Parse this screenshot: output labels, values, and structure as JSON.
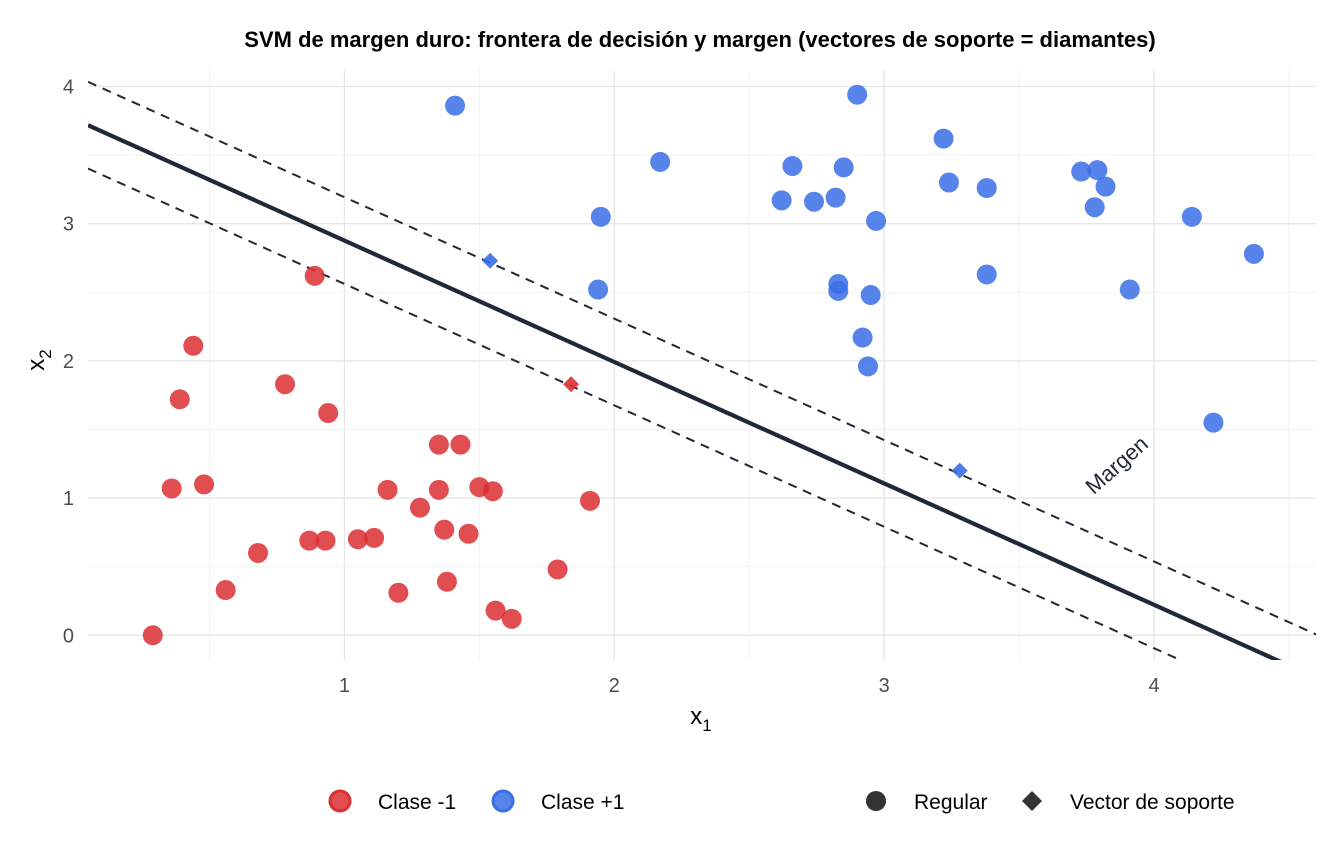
{
  "chart_data": {
    "type": "scatter",
    "title": "SVM de margen duro: frontera de decisión y margen (vectores de soporte = diamantes)",
    "xlabel": "x",
    "xlabel_sub": "1",
    "ylabel": "x",
    "ylabel_sub": "2",
    "xlim": [
      0.05,
      4.6
    ],
    "ylim": [
      -0.18,
      4.12
    ],
    "x_ticks": [
      1,
      2,
      3,
      4
    ],
    "y_ticks": [
      0,
      1,
      2,
      3,
      4
    ],
    "grid": true,
    "legend_position": "bottom",
    "colors": {
      "neg": "#DC2F34",
      "pos": "#3A6FE6",
      "line": "#1F2937",
      "shape": "#333333"
    },
    "boundary": {
      "slope": -0.885,
      "intercept": 3.762,
      "margin_offset": 0.316
    },
    "annotation": {
      "text": "Margen",
      "x": 3.88,
      "y": 1.2,
      "rotation": -41.5
    },
    "series": [
      {
        "name": "Clase -1",
        "class": "neg",
        "points": [
          [
            0.29,
            0.0
          ],
          [
            0.36,
            1.07
          ],
          [
            0.39,
            1.72
          ],
          [
            0.44,
            2.11
          ],
          [
            0.48,
            1.1
          ],
          [
            0.56,
            0.33
          ],
          [
            0.68,
            0.6
          ],
          [
            0.78,
            1.83
          ],
          [
            0.87,
            0.69
          ],
          [
            0.89,
            2.62
          ],
          [
            0.93,
            0.69
          ],
          [
            0.94,
            1.62
          ],
          [
            1.05,
            0.7
          ],
          [
            1.11,
            0.71
          ],
          [
            1.16,
            1.06
          ],
          [
            1.2,
            0.31
          ],
          [
            1.28,
            0.93
          ],
          [
            1.35,
            1.39
          ],
          [
            1.35,
            1.06
          ],
          [
            1.37,
            0.77
          ],
          [
            1.38,
            0.39
          ],
          [
            1.43,
            1.39
          ],
          [
            1.46,
            0.74
          ],
          [
            1.5,
            1.08
          ],
          [
            1.55,
            1.05
          ],
          [
            1.56,
            0.18
          ],
          [
            1.62,
            0.12
          ],
          [
            1.79,
            0.48
          ],
          [
            1.91,
            0.98
          ]
        ],
        "support_vectors": [
          [
            1.84,
            1.83
          ]
        ]
      },
      {
        "name": "Clase +1",
        "class": "pos",
        "points": [
          [
            1.41,
            3.86
          ],
          [
            1.94,
            2.52
          ],
          [
            1.95,
            3.05
          ],
          [
            2.17,
            3.45
          ],
          [
            2.62,
            3.17
          ],
          [
            2.66,
            3.42
          ],
          [
            2.74,
            3.16
          ],
          [
            2.82,
            3.19
          ],
          [
            2.83,
            2.56
          ],
          [
            2.83,
            2.51
          ],
          [
            2.85,
            3.41
          ],
          [
            2.9,
            3.94
          ],
          [
            2.92,
            2.17
          ],
          [
            2.94,
            1.96
          ],
          [
            2.95,
            2.48
          ],
          [
            2.97,
            3.02
          ],
          [
            3.22,
            3.62
          ],
          [
            3.24,
            3.3
          ],
          [
            3.38,
            3.26
          ],
          [
            3.38,
            2.63
          ],
          [
            3.73,
            3.38
          ],
          [
            3.78,
            3.12
          ],
          [
            3.79,
            3.39
          ],
          [
            3.82,
            3.27
          ],
          [
            3.91,
            2.52
          ],
          [
            4.14,
            3.05
          ],
          [
            4.22,
            1.55
          ],
          [
            4.37,
            2.78
          ]
        ],
        "support_vectors": [
          [
            1.54,
            2.73
          ],
          [
            3.28,
            1.2
          ]
        ]
      }
    ],
    "legend": {
      "class_entries": [
        {
          "label": "Clase -1",
          "class": "neg"
        },
        {
          "label": "Clase +1",
          "class": "pos"
        }
      ],
      "shape_entries": [
        {
          "label": "Regular",
          "shape": "circle"
        },
        {
          "label": "Vector de soporte",
          "shape": "diamond"
        }
      ]
    }
  }
}
